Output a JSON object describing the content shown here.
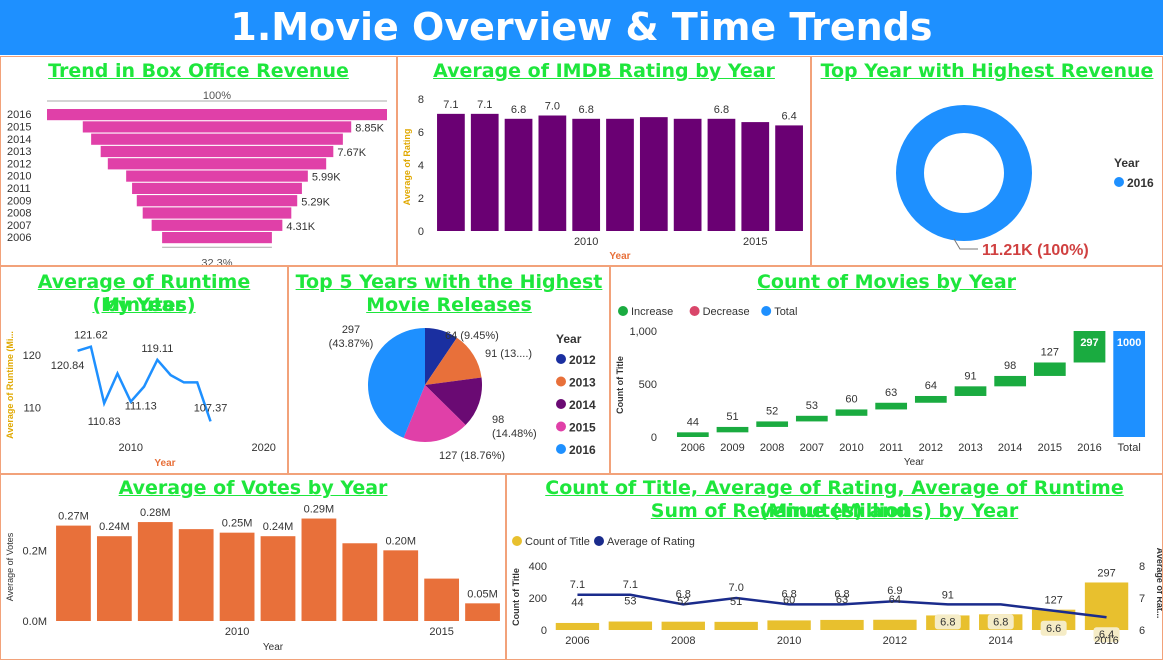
{
  "page_title": "1.Movie Overview & Time Trends",
  "colors": {
    "banner": "#1e90ff",
    "title_green": "#1ee63c",
    "purple": "#6a0073",
    "pink": "#e040a8",
    "blue": "#1e90ff",
    "orange": "#e8703a",
    "yellow": "#e8c02e",
    "navy": "#1a2b8c",
    "increase": "#1aab40",
    "axis_accent": "#e0a800",
    "year_label": "#e8703a"
  },
  "funnel": {
    "title": "Trend in Box Office Revenue",
    "top_pct": "100%",
    "bottom_pct": "32.3%",
    "chart_data": {
      "type": "funnel",
      "categories": [
        "2016",
        "2015",
        "2014",
        "2013",
        "2012",
        "2010",
        "2011",
        "2009",
        "2008",
        "2007",
        "2006"
      ],
      "values": [
        11.21,
        8.85,
        8.3,
        7.67,
        7.2,
        5.99,
        5.6,
        5.29,
        4.9,
        4.31,
        3.62
      ],
      "labels": [
        "",
        "8.85K",
        "",
        "7.67K",
        "",
        "5.99K",
        "",
        "5.29K",
        "",
        "4.31K",
        ""
      ]
    }
  },
  "imdb": {
    "title": "Average of IMDB Rating by Year",
    "ylabel": "Average of Rating",
    "xlabel": "Year",
    "yticks": [
      "0",
      "2",
      "4",
      "6",
      "8"
    ],
    "xticks": [
      "2010",
      "2015"
    ],
    "chart_data": {
      "type": "bar",
      "x": [
        2006,
        2007,
        2008,
        2009,
        2010,
        2011,
        2012,
        2013,
        2014,
        2015,
        2016
      ],
      "values": [
        7.1,
        7.1,
        6.8,
        7.0,
        6.8,
        6.8,
        6.9,
        6.8,
        6.8,
        6.6,
        6.4
      ],
      "labels": [
        "7.1",
        "7.1",
        "6.8",
        "7.0",
        "6.8",
        "",
        "",
        "",
        "6.8",
        "",
        "6.4"
      ],
      "ylim": [
        0,
        8
      ]
    }
  },
  "topyear": {
    "title": "Top Year with Highest Revenue",
    "legend_title": "Year",
    "legend_item": "2016",
    "value_label": "11.21K (100%)",
    "chart_data": {
      "type": "pie",
      "categories": [
        "2016"
      ],
      "values": [
        11.21
      ]
    }
  },
  "runtime": {
    "title_line1": "Average of Runtime (Minutes)",
    "title_line2": "by Year",
    "ylabel": "Average of Runtime (Mi...",
    "xlabel": "Year",
    "yticks": [
      "110",
      "120"
    ],
    "xticks": [
      "2010",
      "2020"
    ],
    "chart_data": {
      "type": "line",
      "x": [
        2006,
        2007,
        2008,
        2009,
        2010,
        2011,
        2012,
        2013,
        2014,
        2015,
        2016
      ],
      "y": [
        120.84,
        121.62,
        110.83,
        116.5,
        111.13,
        114.0,
        119.11,
        116.2,
        114.8,
        114.8,
        107.37
      ],
      "labels": [
        "120.84",
        "121.62",
        "110.83",
        "",
        "111.13",
        "",
        "119.11",
        "",
        "",
        "",
        "107.37"
      ],
      "ylim": [
        104,
        125
      ],
      "xlim": [
        2004,
        2021
      ]
    }
  },
  "top5": {
    "title_line1": "Top 5 Years with the Highest",
    "title_line2": "Movie Releases",
    "legend_title": "Year",
    "chart_data": {
      "type": "pie",
      "categories": [
        "2012",
        "2013",
        "2014",
        "2015",
        "2016"
      ],
      "values": [
        64,
        91,
        98,
        127,
        297
      ],
      "labels": [
        "64 (9.45%)",
        "91 (13....)",
        "98",
        "127 (18.76%)",
        "297"
      ],
      "labels2": [
        "",
        "",
        "(14.48%)",
        "",
        "(43.87%)"
      ]
    }
  },
  "count": {
    "title": "Count of Movies by Year",
    "legend": [
      "Increase",
      "Decrease",
      "Total"
    ],
    "ylabel": "Count of Title",
    "xlabel": "Year",
    "yticks": [
      "0",
      "500",
      "1,000"
    ],
    "chart_data": {
      "type": "waterfall",
      "categories": [
        "2006",
        "2009",
        "2008",
        "2007",
        "2010",
        "2011",
        "2012",
        "2013",
        "2014",
        "2015",
        "2016",
        "Total"
      ],
      "values": [
        44,
        51,
        52,
        53,
        60,
        63,
        64,
        91,
        98,
        127,
        297,
        1000
      ],
      "ylim": [
        0,
        1000
      ]
    }
  },
  "votes": {
    "title": "Average of Votes by Year",
    "ylabel": "Average of Votes",
    "xlabel": "Year",
    "yticks": [
      "0.0M",
      "0.2M"
    ],
    "xticks": [
      "2010",
      "2015"
    ],
    "chart_data": {
      "type": "bar",
      "x": [
        2006,
        2007,
        2008,
        2009,
        2010,
        2011,
        2012,
        2013,
        2014,
        2015,
        2016
      ],
      "values": [
        0.27,
        0.24,
        0.28,
        0.26,
        0.25,
        0.24,
        0.29,
        0.22,
        0.2,
        0.12,
        0.05
      ],
      "labels": [
        "0.27M",
        "0.24M",
        "0.28M",
        "",
        "0.25M",
        "0.24M",
        "0.29M",
        "",
        "0.20M",
        "",
        "0.05M"
      ],
      "ylim": [
        0,
        0.3
      ]
    }
  },
  "combo": {
    "title_line1": "Count of Title, Average of Rating, Average of Runtime (Minutes) and",
    "title_line2": "Sum of Revenue (Millions) by Year",
    "legend": [
      "Count of Title",
      "Average of Rating"
    ],
    "ylabel_left": "Count of Title",
    "ylabel_right": "Average of Rat...",
    "yticks_left": [
      "0",
      "200",
      "400"
    ],
    "yticks_right": [
      "6",
      "7",
      "8"
    ],
    "xticks": [
      "2006",
      "2008",
      "2010",
      "2012",
      "2014",
      "2016"
    ],
    "chart_data": {
      "type": "combo",
      "x": [
        2006,
        2007,
        2008,
        2009,
        2010,
        2011,
        2012,
        2013,
        2014,
        2015,
        2016
      ],
      "count": [
        44,
        53,
        52,
        51,
        60,
        63,
        64,
        91,
        98,
        127,
        297
      ],
      "rating": [
        7.1,
        7.1,
        6.8,
        7.0,
        6.8,
        6.8,
        6.9,
        6.8,
        6.8,
        6.6,
        6.4
      ],
      "count_labels": [
        "44",
        "53",
        "52",
        "51",
        "60",
        "63",
        "64",
        "91",
        "",
        "127",
        "297"
      ],
      "rating_labels": [
        "7.1",
        "7.1",
        "6.8",
        "7.0",
        "6.8",
        "6.8",
        "6.9",
        "6.8",
        "6.8",
        "6.6",
        "6.4"
      ],
      "ylim_left": [
        0,
        400
      ],
      "ylim_right": [
        6,
        8
      ]
    }
  }
}
